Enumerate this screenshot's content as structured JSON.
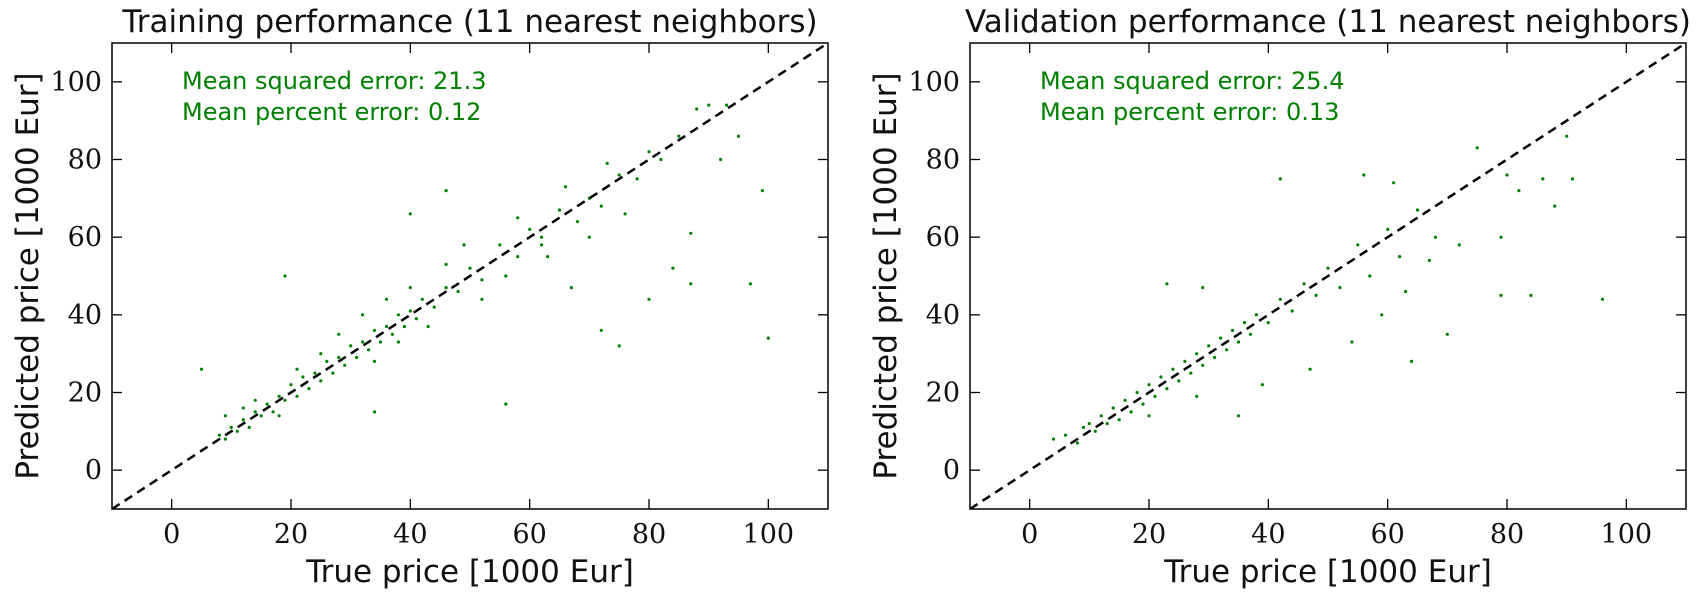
{
  "chart_data": [
    {
      "type": "scatter",
      "title": "Training performance (11 nearest neighbors)",
      "xlabel": "True price [1000 Eur]",
      "ylabel": "Predicted price [1000 Eur]",
      "xlim": [
        -10,
        110
      ],
      "ylim": [
        -10,
        110
      ],
      "xticks": [
        0,
        20,
        40,
        60,
        80,
        100
      ],
      "yticks": [
        0,
        20,
        40,
        60,
        80,
        100
      ],
      "grid": false,
      "color": "#008000",
      "annotations": [
        "Mean squared error: 21.3",
        "Mean percent error: 0.12"
      ],
      "reference_line": {
        "style": "dashed",
        "color": "#000000",
        "from": [
          -10,
          -10
        ],
        "to": [
          110,
          110
        ]
      },
      "series": [
        {
          "points": [
            [
              8,
              9
            ],
            [
              9,
              8
            ],
            [
              10,
              11
            ],
            [
              11,
              10
            ],
            [
              12,
              13
            ],
            [
              13,
              11
            ],
            [
              14,
              15
            ],
            [
              15,
              14
            ],
            [
              16,
              17
            ],
            [
              17,
              15
            ],
            [
              18,
              19
            ],
            [
              19,
              18
            ],
            [
              20,
              22
            ],
            [
              21,
              19
            ],
            [
              22,
              24
            ],
            [
              23,
              21
            ],
            [
              24,
              25
            ],
            [
              25,
              23
            ],
            [
              26,
              28
            ],
            [
              27,
              25
            ],
            [
              28,
              29
            ],
            [
              29,
              27
            ],
            [
              30,
              32
            ],
            [
              31,
              29
            ],
            [
              32,
              33
            ],
            [
              33,
              31
            ],
            [
              34,
              36
            ],
            [
              35,
              33
            ],
            [
              36,
              37
            ],
            [
              37,
              35
            ],
            [
              38,
              40
            ],
            [
              39,
              37
            ],
            [
              40,
              41
            ],
            [
              41,
              39
            ],
            [
              42,
              44
            ],
            [
              44,
              42
            ],
            [
              46,
              47
            ],
            [
              48,
              46
            ],
            [
              50,
              52
            ],
            [
              52,
              49
            ],
            [
              55,
              58
            ],
            [
              58,
              55
            ],
            [
              60,
              62
            ],
            [
              62,
              60
            ],
            [
              65,
              67
            ],
            [
              68,
              64
            ],
            [
              70,
              70
            ],
            [
              72,
              68
            ],
            [
              75,
              76
            ],
            [
              78,
              75
            ],
            [
              80,
              82
            ],
            [
              82,
              80
            ],
            [
              85,
              86
            ],
            [
              88,
              93
            ],
            [
              90,
              94
            ],
            [
              93,
              94
            ],
            [
              95,
              86
            ],
            [
              97,
              48
            ],
            [
              99,
              72
            ],
            [
              100,
              34
            ],
            [
              5,
              26
            ],
            [
              9,
              14
            ],
            [
              12,
              16
            ],
            [
              14,
              18
            ],
            [
              18,
              14
            ],
            [
              21,
              26
            ],
            [
              25,
              30
            ],
            [
              28,
              35
            ],
            [
              32,
              40
            ],
            [
              34,
              28
            ],
            [
              36,
              44
            ],
            [
              38,
              33
            ],
            [
              40,
              47
            ],
            [
              43,
              37
            ],
            [
              46,
              53
            ],
            [
              49,
              58
            ],
            [
              52,
              44
            ],
            [
              56,
              50
            ],
            [
              58,
              65
            ],
            [
              63,
              55
            ],
            [
              66,
              73
            ],
            [
              70,
              60
            ],
            [
              73,
              79
            ],
            [
              76,
              66
            ],
            [
              84,
              52
            ],
            [
              87,
              61
            ],
            [
              92,
              80
            ],
            [
              34,
              15
            ],
            [
              56,
              17
            ],
            [
              75,
              32
            ],
            [
              80,
              44
            ],
            [
              87,
              48
            ],
            [
              19,
              50
            ],
            [
              40,
              66
            ],
            [
              46,
              72
            ],
            [
              62,
              58
            ],
            [
              67,
              47
            ],
            [
              72,
              36
            ]
          ]
        }
      ]
    },
    {
      "type": "scatter",
      "title": "Validation performance (11 nearest neighbors)",
      "xlabel": "True price [1000 Eur]",
      "ylabel": "Predicted price [1000 Eur]",
      "xlim": [
        -10,
        110
      ],
      "ylim": [
        -10,
        110
      ],
      "xticks": [
        0,
        20,
        40,
        60,
        80,
        100
      ],
      "yticks": [
        0,
        20,
        40,
        60,
        80,
        100
      ],
      "grid": false,
      "color": "#008000",
      "annotations": [
        "Mean squared error: 25.4",
        "Mean percent error: 0.13"
      ],
      "reference_line": {
        "style": "dashed",
        "color": "#000000",
        "from": [
          -10,
          -10
        ],
        "to": [
          110,
          110
        ]
      },
      "series": [
        {
          "points": [
            [
              4,
              8
            ],
            [
              6,
              9
            ],
            [
              8,
              7
            ],
            [
              9,
              11
            ],
            [
              10,
              12
            ],
            [
              11,
              10
            ],
            [
              12,
              14
            ],
            [
              13,
              12
            ],
            [
              14,
              16
            ],
            [
              15,
              13
            ],
            [
              16,
              18
            ],
            [
              17,
              15
            ],
            [
              18,
              20
            ],
            [
              19,
              17
            ],
            [
              20,
              22
            ],
            [
              21,
              19
            ],
            [
              22,
              24
            ],
            [
              23,
              21
            ],
            [
              24,
              26
            ],
            [
              25,
              23
            ],
            [
              26,
              28
            ],
            [
              27,
              25
            ],
            [
              28,
              30
            ],
            [
              29,
              27
            ],
            [
              30,
              32
            ],
            [
              31,
              29
            ],
            [
              32,
              34
            ],
            [
              33,
              31
            ],
            [
              34,
              36
            ],
            [
              35,
              33
            ],
            [
              36,
              38
            ],
            [
              37,
              35
            ],
            [
              38,
              40
            ],
            [
              40,
              38
            ],
            [
              42,
              44
            ],
            [
              44,
              41
            ],
            [
              46,
              48
            ],
            [
              48,
              45
            ],
            [
              50,
              52
            ],
            [
              52,
              47
            ],
            [
              55,
              58
            ],
            [
              57,
              50
            ],
            [
              60,
              62
            ],
            [
              62,
              55
            ],
            [
              65,
              67
            ],
            [
              68,
              60
            ],
            [
              75,
              83
            ],
            [
              80,
              76
            ],
            [
              82,
              72
            ],
            [
              86,
              75
            ],
            [
              90,
              86
            ],
            [
              91,
              75
            ],
            [
              96,
              44
            ],
            [
              42,
              75
            ],
            [
              56,
              76
            ],
            [
              61,
              74
            ],
            [
              64,
              28
            ],
            [
              70,
              35
            ],
            [
              79,
              45
            ],
            [
              84,
              45
            ],
            [
              54,
              33
            ],
            [
              59,
              40
            ],
            [
              23,
              48
            ],
            [
              29,
              47
            ],
            [
              20,
              14
            ],
            [
              28,
              19
            ],
            [
              35,
              14
            ],
            [
              39,
              22
            ],
            [
              47,
              26
            ],
            [
              63,
              46
            ],
            [
              67,
              54
            ],
            [
              72,
              58
            ],
            [
              79,
              60
            ],
            [
              88,
              68
            ]
          ]
        }
      ]
    }
  ]
}
